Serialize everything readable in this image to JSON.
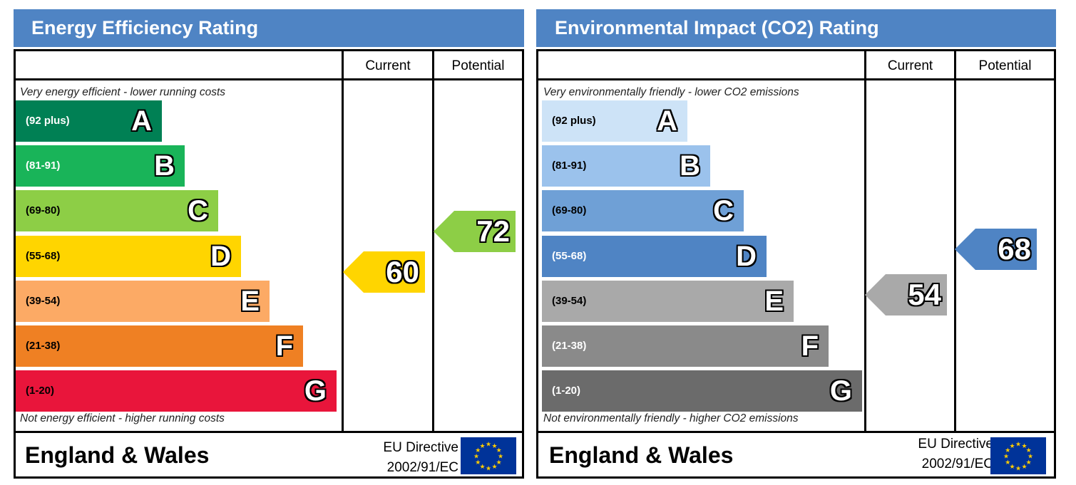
{
  "charts": [
    {
      "title": "Energy Efficiency Rating",
      "col_current": "Current",
      "col_potential": "Potential",
      "top_caption": "Very energy efficient - lower running costs",
      "bottom_caption": "Not energy efficient - higher running costs",
      "region": "England & Wales",
      "directive_line1": "EU Directive",
      "directive_line2": "2002/91/EC",
      "eu_flag_icon": "eu-flag-icon"
    },
    {
      "title": "Environmental Impact (CO2) Rating",
      "col_current": "Current",
      "col_potential": "Potential",
      "top_caption": "Very environmentally friendly - lower CO2 emissions",
      "bottom_caption": "Not environmentally friendly - higher CO2 emissions",
      "region": "England & Wales",
      "directive_line1": "EU Directive",
      "directive_line2": "2002/91/EC",
      "eu_flag_icon": "eu-flag-icon"
    }
  ],
  "chart_data": [
    {
      "type": "bar",
      "title": "Energy Efficiency Rating",
      "categories": [
        "A",
        "B",
        "C",
        "D",
        "E",
        "F",
        "G"
      ],
      "ranges": [
        "(92 plus)",
        "(81-91)",
        "(69-80)",
        "(55-68)",
        "(39-54)",
        "(21-38)",
        "(1-20)"
      ],
      "colors": [
        "#008054",
        "#19b459",
        "#8dce46",
        "#ffd500",
        "#fcaa65",
        "#ef8023",
        "#e9153b"
      ],
      "current": {
        "value": 60,
        "band": "D",
        "color": "#ffd500"
      },
      "potential": {
        "value": 72,
        "band": "C",
        "color": "#8dce46"
      }
    },
    {
      "type": "bar",
      "title": "Environmental Impact (CO2) Rating",
      "categories": [
        "A",
        "B",
        "C",
        "D",
        "E",
        "F",
        "G"
      ],
      "ranges": [
        "(92 plus)",
        "(81-91)",
        "(69-80)",
        "(55-68)",
        "(39-54)",
        "(21-38)",
        "(1-20)"
      ],
      "colors": [
        "#cde3f7",
        "#9bc2ec",
        "#6fa0d6",
        "#4f84c4",
        "#a9a9a9",
        "#8a8a8a",
        "#6b6b6b"
      ],
      "current": {
        "value": 54,
        "band": "E",
        "color": "#a9a9a9"
      },
      "potential": {
        "value": 68,
        "band": "D",
        "color": "#4f84c4"
      }
    }
  ]
}
